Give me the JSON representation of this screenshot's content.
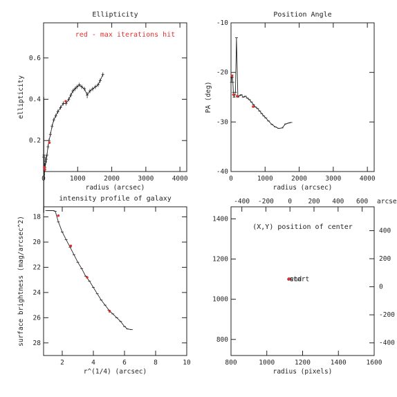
{
  "chart_data": [
    {
      "id": "ellip",
      "type": "line",
      "title": "Ellipticity",
      "xlabel": "radius (arcsec)",
      "ylabel": "ellipticity",
      "xlim": [
        0,
        4200
      ],
      "ylim": [
        0.05,
        0.77
      ],
      "xticks": [
        0,
        1000,
        2000,
        3000,
        4000
      ],
      "yticks": [
        0.2,
        0.4,
        0.6
      ],
      "annotation": "red - max iterations hit",
      "series": [
        {
          "x": [
            0,
            10,
            20,
            30,
            45,
            60,
            80,
            100,
            130,
            160,
            200,
            250,
            300,
            360,
            420,
            500,
            580,
            660,
            740,
            800,
            860,
            920,
            980,
            1050,
            1120,
            1200,
            1280,
            1360,
            1440,
            1520,
            1600,
            1660,
            1740
          ],
          "y": [
            0.12,
            0.13,
            0.07,
            0.06,
            0.07,
            0.1,
            0.11,
            0.13,
            0.17,
            0.2,
            0.23,
            0.27,
            0.3,
            0.32,
            0.34,
            0.36,
            0.38,
            0.38,
            0.4,
            0.42,
            0.44,
            0.45,
            0.46,
            0.47,
            0.46,
            0.45,
            0.42,
            0.44,
            0.45,
            0.46,
            0.47,
            0.49,
            0.52
          ],
          "yerr": [
            0.53,
            0.28,
            0.06,
            0.03,
            0.02,
            0.02,
            0.02,
            0.01,
            0.01,
            0.01,
            0.01,
            0.01,
            0.01,
            0.01,
            0.01,
            0.01,
            0.01,
            0.01,
            0.01,
            0.01,
            0.01,
            0.01,
            0.01,
            0.01,
            0.01,
            0.01,
            0.015,
            0.01,
            0.01,
            0.01,
            0.01,
            0.01,
            0.01
          ]
        }
      ],
      "red_points": [
        {
          "x": 20,
          "y": 0.07
        },
        {
          "x": 40,
          "y": 0.06
        },
        {
          "x": 170,
          "y": 0.19
        },
        {
          "x": 650,
          "y": 0.39
        }
      ]
    },
    {
      "id": "pa",
      "type": "line",
      "title": "Position Angle",
      "xlabel": "radius (arcsec)",
      "ylabel": "PA (deg)",
      "xlim": [
        0,
        4200
      ],
      "ylim": [
        -40,
        -10
      ],
      "xticks": [
        0,
        1000,
        2000,
        3000,
        4000
      ],
      "yticks": [
        -40,
        -30,
        -20,
        -10
      ],
      "series": [
        {
          "x": [
            10,
            20,
            30,
            40,
            55,
            70,
            90,
            110,
            130,
            160,
            200,
            250,
            300,
            360,
            420,
            480,
            540,
            600,
            660,
            720,
            780,
            840,
            900,
            960,
            1020,
            1100,
            1200,
            1300,
            1400,
            1500,
            1600,
            1700,
            1760
          ],
          "y": [
            -22,
            -21,
            -20.5,
            -21,
            -22,
            -24,
            -25,
            -24.5,
            -24,
            -13,
            -25,
            -24.7,
            -24.5,
            -25,
            -24.8,
            -25.2,
            -25.5,
            -26,
            -26.5,
            -27,
            -27.3,
            -27.8,
            -28.3,
            -28.8,
            -29.2,
            -29.8,
            -30.5,
            -31,
            -31.3,
            -31.2,
            -30.4,
            -30.2,
            -30.1
          ]
        }
      ],
      "red_points": [
        {
          "x": 30,
          "y": -20.7
        },
        {
          "x": 70,
          "y": -24.5
        },
        {
          "x": 180,
          "y": -24.8
        },
        {
          "x": 650,
          "y": -26.9
        }
      ]
    },
    {
      "id": "prof",
      "type": "line",
      "title": "intensity profile of galaxy",
      "xlabel": "r^(1/4) (arcsec)",
      "ylabel": "surface brightness (mag/arcsec^2)",
      "xlim": [
        0.8,
        10
      ],
      "ylim": [
        29,
        17.2
      ],
      "xticks": [
        2,
        4,
        6,
        8,
        10
      ],
      "yticks": [
        18,
        20,
        22,
        24,
        26,
        28
      ],
      "series": [
        {
          "x": [
            1.0,
            1.2,
            1.4,
            1.55,
            1.75,
            2.0,
            2.25,
            2.5,
            2.75,
            3.0,
            3.25,
            3.5,
            3.75,
            4.0,
            4.25,
            4.5,
            4.75,
            5.0,
            5.25,
            5.5,
            5.75,
            6.0,
            6.2,
            6.45
          ],
          "y": [
            17.5,
            17.5,
            17.5,
            17.55,
            18.4,
            19.2,
            19.8,
            20.4,
            21.0,
            21.6,
            22.1,
            22.7,
            23.1,
            23.6,
            24.1,
            24.6,
            25.0,
            25.4,
            25.7,
            26.0,
            26.3,
            26.7,
            26.9,
            26.95
          ]
        }
      ],
      "red_points": [
        {
          "x": 1.75,
          "y": 17.9
        },
        {
          "x": 2.55,
          "y": 20.3
        },
        {
          "x": 3.6,
          "y": 22.8
        },
        {
          "x": 5.05,
          "y": 25.5
        }
      ]
    },
    {
      "id": "center",
      "type": "scatter",
      "title": "(X,Y) position of center",
      "xlabel": "radius (pixels)",
      "xlim": [
        800,
        1600
      ],
      "ylim": [
        720,
        1460
      ],
      "xticks": [
        800,
        1000,
        1200,
        1400,
        1600
      ],
      "yticks": [
        800,
        1000,
        1200,
        1400
      ],
      "top_axis": {
        "lim": [
          -490,
          700
        ],
        "ticks": [
          -400,
          -200,
          0,
          200,
          400,
          600
        ],
        "label": "arcsec"
      },
      "right_axis": {
        "lim": [
          -490,
          570
        ],
        "ticks": [
          -400,
          -200,
          0,
          200,
          400
        ],
        "label": "arcsec"
      },
      "points": [
        {
          "x": 1123,
          "y": 1100,
          "label": "start"
        },
        {
          "x": 1125,
          "y": 1101,
          "label": "end"
        }
      ]
    }
  ]
}
